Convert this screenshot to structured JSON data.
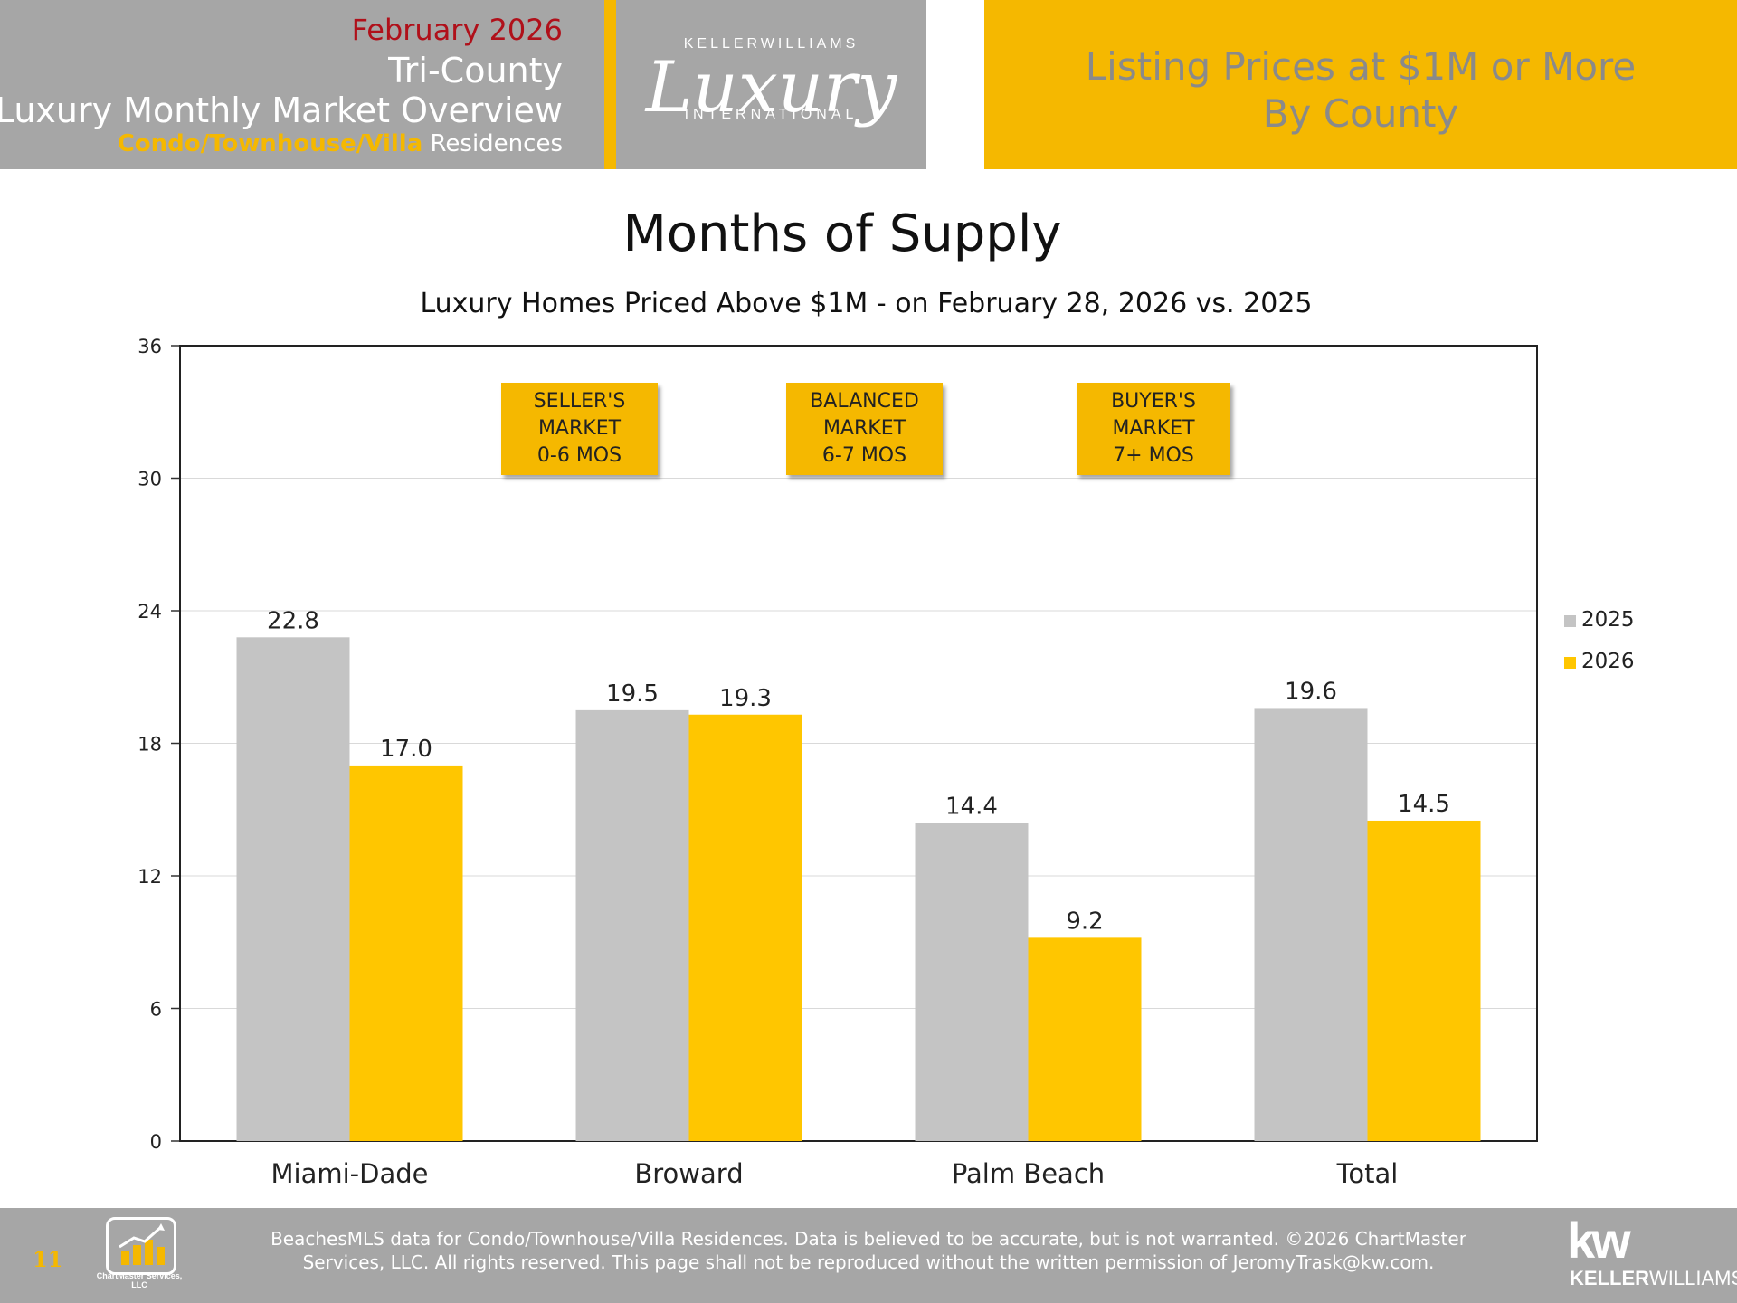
{
  "header": {
    "date": "February 2026",
    "region": "Tri-County",
    "title": "Luxury Monthly Market Overview",
    "property_type_highlight": "Condo/Townhouse/Villa",
    "property_type_rest": "Residences",
    "logo_top": "KELLERWILLIAMS",
    "logo_script": "Luxury",
    "logo_bottom": "INTERNATIONAL",
    "right_line1": "Listing Prices at $1M or More",
    "right_line2": "By County"
  },
  "callouts": [
    {
      "line1": "SELLER'S",
      "line2": "MARKET",
      "line3": "0-6 MOS"
    },
    {
      "line1": "BALANCED",
      "line2": "MARKET",
      "line3": "6-7 MOS"
    },
    {
      "line1": "BUYER'S",
      "line2": "MARKET",
      "line3": "7+ MOS"
    }
  ],
  "chart_data": {
    "type": "bar",
    "title": "Months of Supply",
    "subtitle": "Luxury Homes Priced Above $1M - on February 28,  2026 vs. 2025",
    "categories": [
      "Miami-Dade",
      "Broward",
      "Palm Beach",
      "Total"
    ],
    "series": [
      {
        "name": "2025",
        "color": "#c4c4c4",
        "values": [
          22.8,
          19.5,
          14.4,
          19.6
        ]
      },
      {
        "name": "2026",
        "color": "#ffc600",
        "values": [
          17.0,
          19.3,
          9.2,
          14.5
        ]
      }
    ],
    "ylim": [
      0,
      36
    ],
    "yticks": [
      0,
      6,
      12,
      18,
      24,
      30,
      36
    ],
    "grid": true,
    "legend": "right",
    "data_labels": true
  },
  "footer": {
    "page_number": "11",
    "chartmaster_name": "ChartMaster Services, LLC",
    "disclaimer_line1": "BeachesMLS data for Condo/Townhouse/Villa Residences.  Data is believed to be accurate, but is not warranted.   ©2026  ChartMaster",
    "disclaimer_line2": "Services, LLC.  All rights reserved. This page shall not be reproduced without the written permission of JeromyTrask@kw.com.",
    "kw_mark": "kw",
    "kw_bold": "KELLER",
    "kw_rest": "WILLIAMS."
  }
}
